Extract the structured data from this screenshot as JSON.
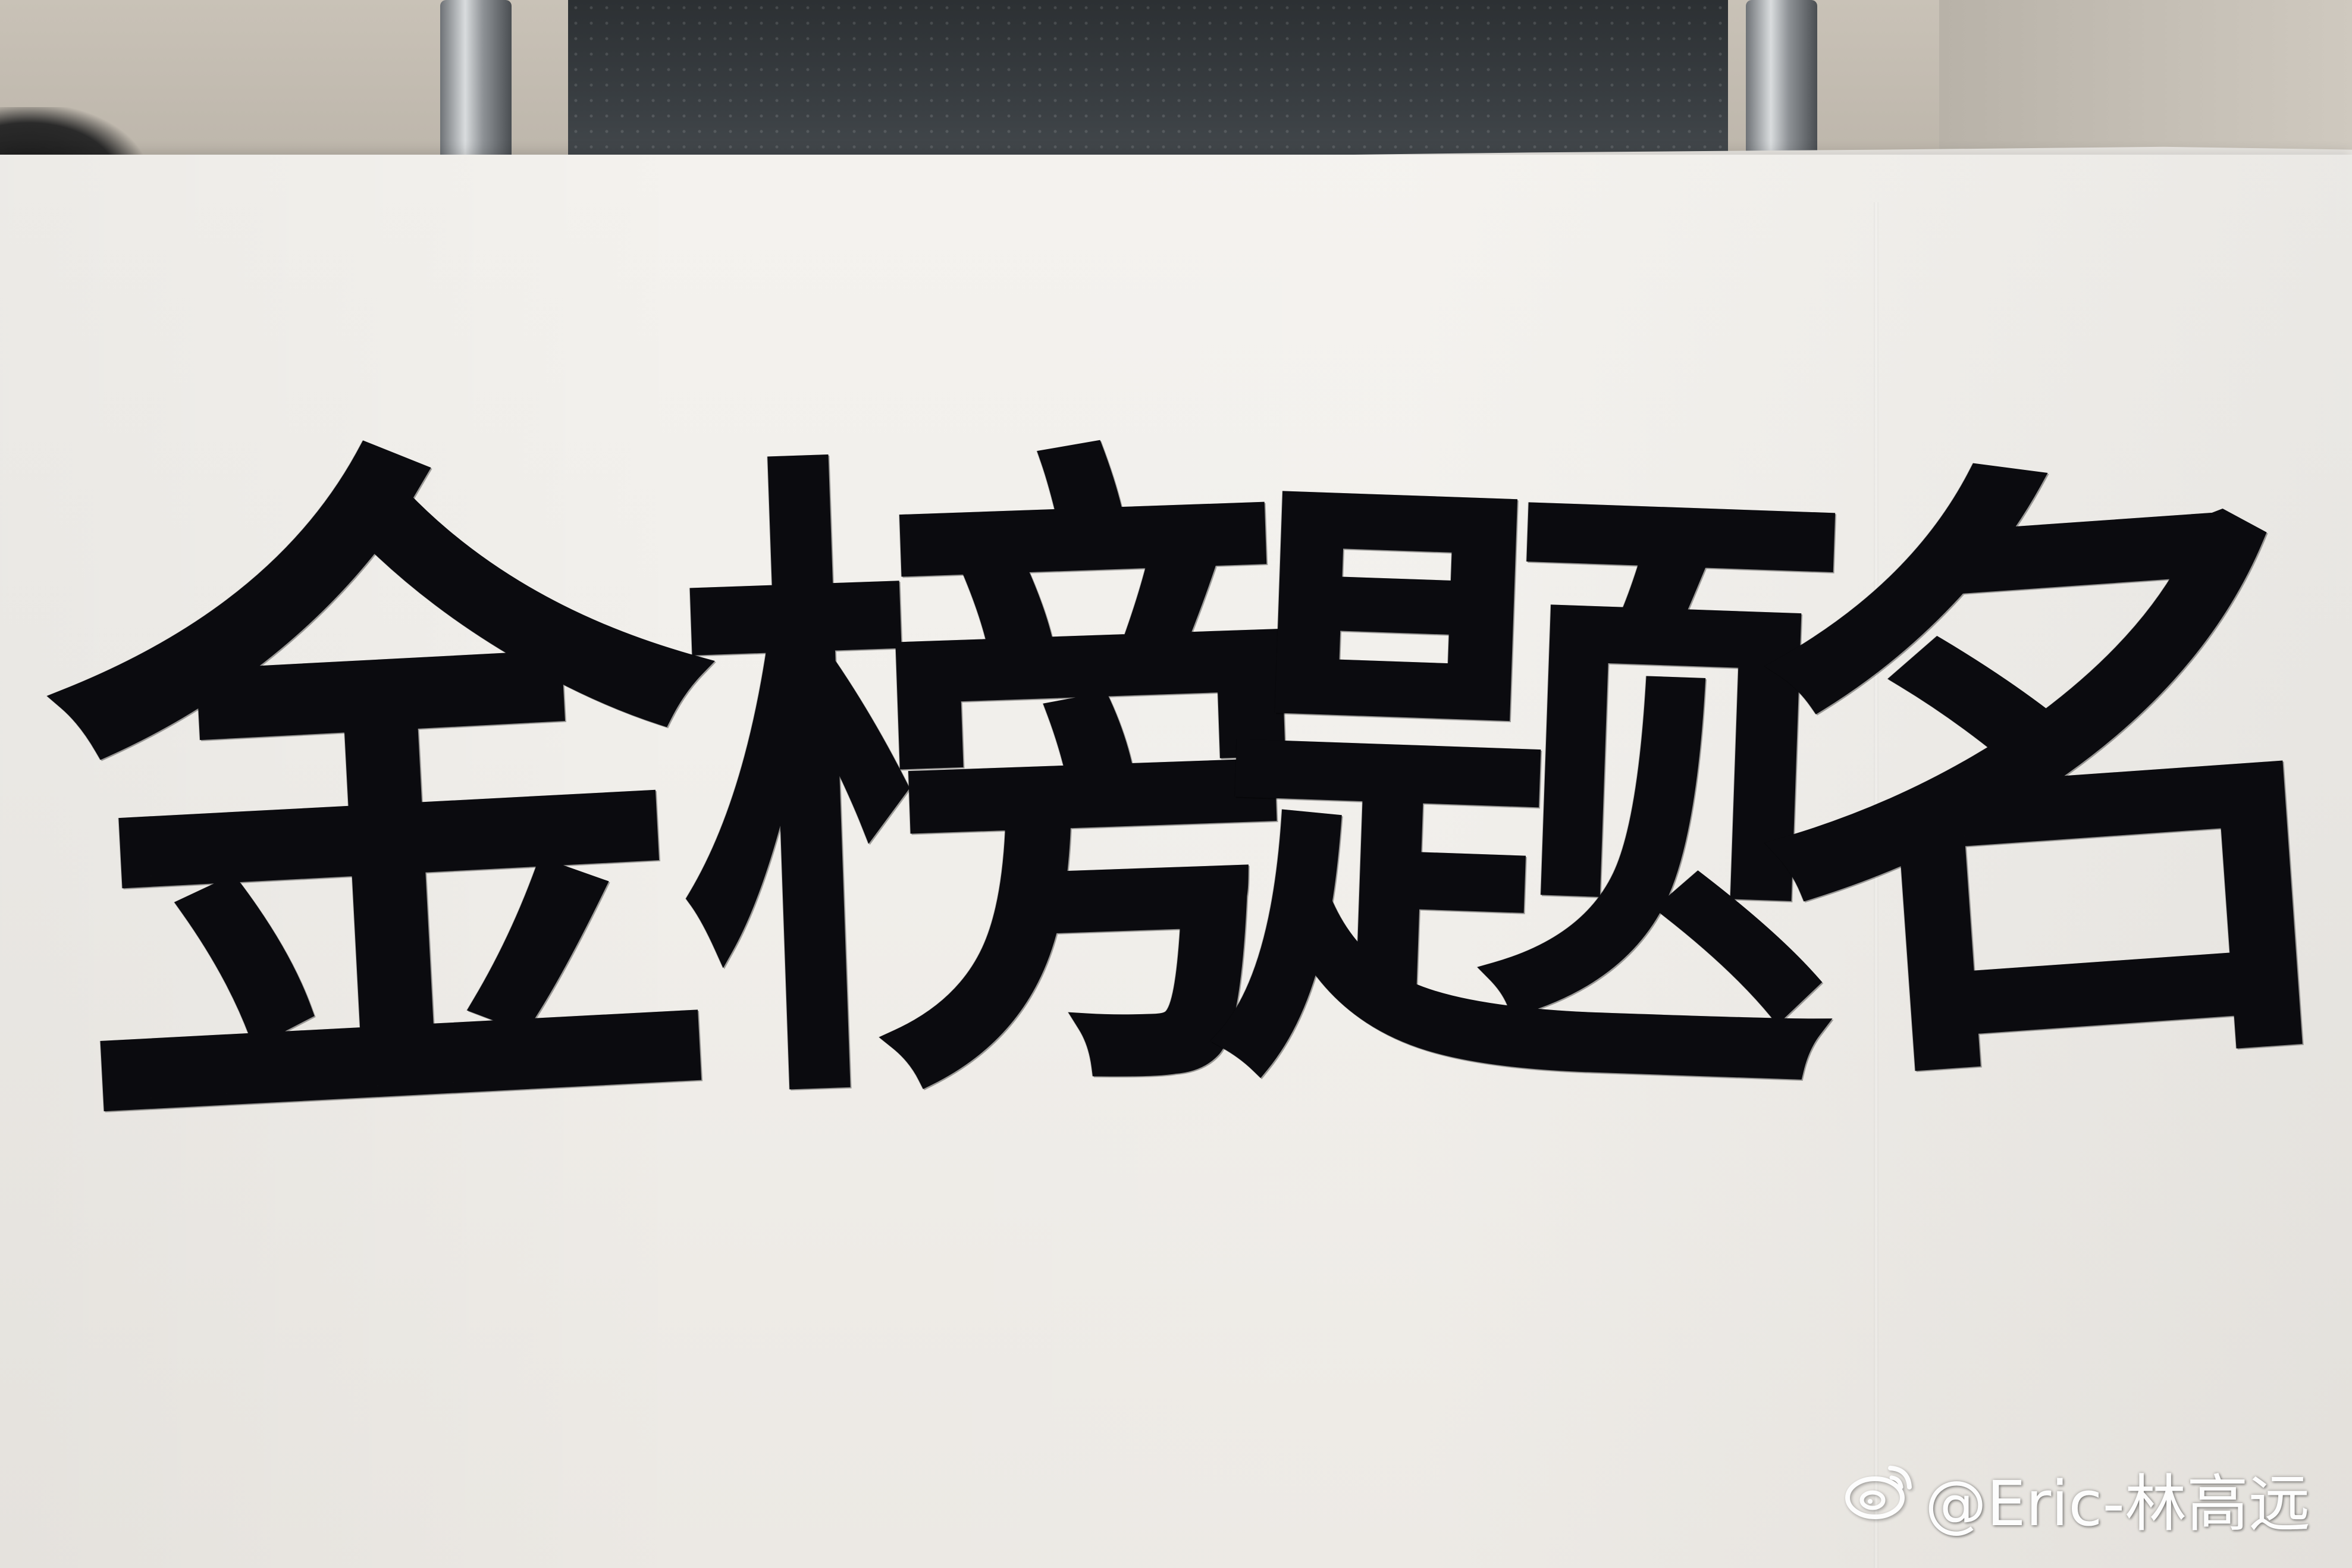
{
  "calligraphy": {
    "characters": [
      "金",
      "榜",
      "题",
      "名"
    ]
  },
  "watermark": {
    "icon": "weibo-icon",
    "text": "@Eric-林高远"
  }
}
